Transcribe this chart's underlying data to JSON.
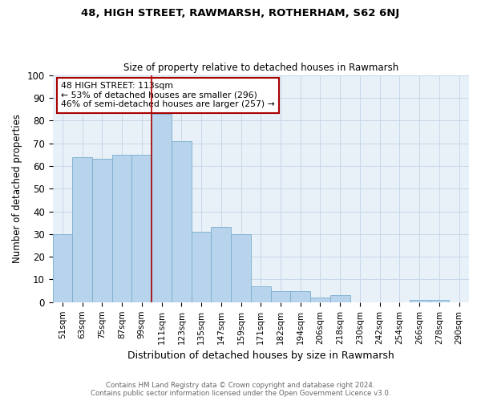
{
  "title": "48, HIGH STREET, RAWMARSH, ROTHERHAM, S62 6NJ",
  "subtitle": "Size of property relative to detached houses in Rawmarsh",
  "xlabel": "Distribution of detached houses by size in Rawmarsh",
  "ylabel": "Number of detached properties",
  "footer_line1": "Contains HM Land Registry data © Crown copyright and database right 2024.",
  "footer_line2": "Contains public sector information licensed under the Open Government Licence v3.0.",
  "categories": [
    "51sqm",
    "63sqm",
    "75sqm",
    "87sqm",
    "99sqm",
    "111sqm",
    "123sqm",
    "135sqm",
    "147sqm",
    "159sqm",
    "171sqm",
    "182sqm",
    "194sqm",
    "206sqm",
    "218sqm",
    "230sqm",
    "242sqm",
    "254sqm",
    "266sqm",
    "278sqm",
    "290sqm"
  ],
  "values": [
    30,
    64,
    63,
    65,
    65,
    83,
    71,
    31,
    33,
    30,
    7,
    5,
    5,
    2,
    3,
    0,
    0,
    0,
    1,
    1,
    0
  ],
  "bar_color": "#b8d4ec",
  "bar_edge_color": "#7aaece",
  "annotation_line1": "48 HIGH STREET: 113sqm",
  "annotation_line2": "← 53% of detached houses are smaller (296)",
  "annotation_line3": "46% of semi-detached houses are larger (257) →",
  "annotation_box_color": "white",
  "annotation_box_edgecolor": "#aa0000",
  "property_line_color": "#aa0000",
  "property_line_bin": 5,
  "ylim": [
    0,
    100
  ],
  "yticks": [
    0,
    10,
    20,
    30,
    40,
    50,
    60,
    70,
    80,
    90,
    100
  ],
  "background_color": "white",
  "plot_bg_color": "#e8f0f8",
  "grid_color": "#c8d8e8"
}
